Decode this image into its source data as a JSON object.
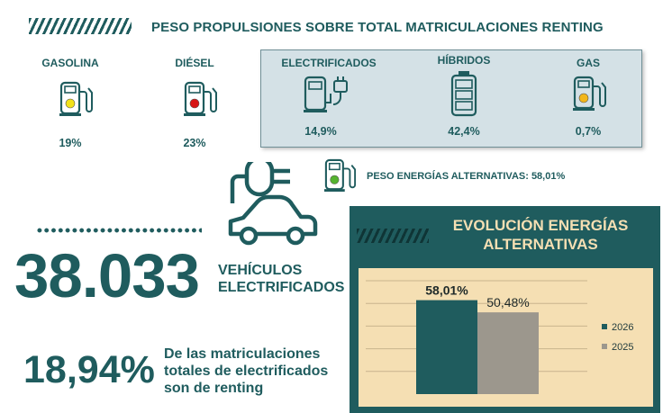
{
  "header": {
    "title": "PESO PROPULSIONES SOBRE TOTAL MATRICULACIONES RENTING"
  },
  "fuels": [
    {
      "label": "GASOLINA",
      "pct": "19%",
      "icon": "fuel-pump-icon",
      "light_color": "#f2e21a"
    },
    {
      "label": "DIÉSEL",
      "pct": "23%",
      "icon": "fuel-pump-icon",
      "light_color": "#d81414"
    }
  ],
  "alternatives": [
    {
      "label": "ELECTRIFICADOS",
      "pct": "14,9%",
      "icon": "electric-charger-icon"
    },
    {
      "label": "HÍBRIDOS",
      "pct": "42,4%",
      "icon": "battery-icon"
    },
    {
      "label": "GAS",
      "pct": "0,7%",
      "icon": "fuel-pump-icon",
      "light_color": "#f2b61a"
    }
  ],
  "alternatives_total": {
    "text": "PESO ENERGÍAS ALTERNATIVAS: 58,01%",
    "icon": "fuel-pump-icon",
    "light_color": "#55b330"
  },
  "electrified": {
    "number": "38.033",
    "label_line1": "VEHÍCULOS",
    "label_line2": "ELECTRIFICADOS",
    "icon": "electric-car-icon"
  },
  "renting_share": {
    "number": "18,94%",
    "line1": "De las matriculaciones",
    "line2": "totales de electrificados",
    "line3": "son de renting"
  },
  "colors": {
    "accent": "#1f5c5e",
    "panel_fill": "#d4e1e6",
    "chart_bg": "#f5dfb3",
    "bar_2026": "#1f5c5e",
    "bar_2025": "#9c978d"
  },
  "chart_data": {
    "type": "bar",
    "title": "EVOLUCIÓN ENERGÍAS ALTERNATIVAS",
    "title_line1": "EVOLUCIÓN ENERGÍAS",
    "title_line2": "ALTERNATIVAS",
    "categories": [
      ""
    ],
    "series": [
      {
        "name": "2026",
        "values": [
          58.01
        ],
        "label": "58,01%",
        "color": "#1f5c5e"
      },
      {
        "name": "2025",
        "values": [
          50.48
        ],
        "label": "50,48%",
        "color": "#9c978d"
      }
    ],
    "ylim": [
      0,
      70
    ],
    "grid": true,
    "legend": "right",
    "xlabel": "",
    "ylabel": ""
  }
}
